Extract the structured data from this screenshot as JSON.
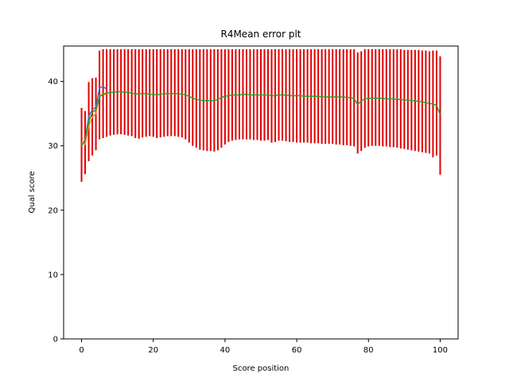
{
  "chart_data": {
    "type": "line",
    "title": "R4Mean error plt",
    "xlabel": "Score position",
    "ylabel": "Qual score",
    "xlim": [
      -5,
      105
    ],
    "ylim": [
      0,
      45.5
    ],
    "xticks": [
      0,
      20,
      40,
      60,
      80,
      100
    ],
    "yticks": [
      0,
      10,
      20,
      30,
      40
    ],
    "grid": false,
    "colors": {
      "errorbar": "#e00000",
      "series_blue": "#4a6fd8",
      "series_orange": "#ff8c1a",
      "series_green": "#2ca02c"
    },
    "errorbars": [
      {
        "x": 0,
        "low": 24.4,
        "high": 35.9
      },
      {
        "x": 1,
        "low": 25.6,
        "high": 35.4
      },
      {
        "x": 2,
        "low": 27.6,
        "high": 39.9
      },
      {
        "x": 3,
        "low": 28.5,
        "high": 40.5
      },
      {
        "x": 4,
        "low": 29.3,
        "high": 40.6
      },
      {
        "x": 5,
        "low": 31.0,
        "high": 44.8
      },
      {
        "x": 6,
        "low": 31.2,
        "high": 45.0
      },
      {
        "x": 7,
        "low": 31.4,
        "high": 45.0
      },
      {
        "x": 8,
        "low": 31.6,
        "high": 45.0
      },
      {
        "x": 9,
        "low": 31.7,
        "high": 45.0
      },
      {
        "x": 10,
        "low": 31.8,
        "high": 45.0
      },
      {
        "x": 11,
        "low": 31.8,
        "high": 45.0
      },
      {
        "x": 12,
        "low": 31.7,
        "high": 45.0
      },
      {
        "x": 13,
        "low": 31.6,
        "high": 45.0
      },
      {
        "x": 14,
        "low": 31.5,
        "high": 45.0
      },
      {
        "x": 15,
        "low": 31.2,
        "high": 45.0
      },
      {
        "x": 16,
        "low": 31.1,
        "high": 45.0
      },
      {
        "x": 17,
        "low": 31.3,
        "high": 45.0
      },
      {
        "x": 18,
        "low": 31.4,
        "high": 45.0
      },
      {
        "x": 19,
        "low": 31.5,
        "high": 45.0
      },
      {
        "x": 20,
        "low": 31.4,
        "high": 45.0
      },
      {
        "x": 21,
        "low": 31.2,
        "high": 45.0
      },
      {
        "x": 22,
        "low": 31.3,
        "high": 45.0
      },
      {
        "x": 23,
        "low": 31.4,
        "high": 45.0
      },
      {
        "x": 24,
        "low": 31.5,
        "high": 45.0
      },
      {
        "x": 25,
        "low": 31.5,
        "high": 45.0
      },
      {
        "x": 26,
        "low": 31.5,
        "high": 45.0
      },
      {
        "x": 27,
        "low": 31.4,
        "high": 45.0
      },
      {
        "x": 28,
        "low": 31.3,
        "high": 45.0
      },
      {
        "x": 29,
        "low": 31.0,
        "high": 45.0
      },
      {
        "x": 30,
        "low": 30.5,
        "high": 45.0
      },
      {
        "x": 31,
        "low": 30.0,
        "high": 45.0
      },
      {
        "x": 32,
        "low": 29.7,
        "high": 45.0
      },
      {
        "x": 33,
        "low": 29.4,
        "high": 45.0
      },
      {
        "x": 34,
        "low": 29.3,
        "high": 45.0
      },
      {
        "x": 35,
        "low": 29.2,
        "high": 45.0
      },
      {
        "x": 36,
        "low": 29.2,
        "high": 45.0
      },
      {
        "x": 37,
        "low": 29.1,
        "high": 45.0
      },
      {
        "x": 38,
        "low": 29.3,
        "high": 45.0
      },
      {
        "x": 39,
        "low": 29.7,
        "high": 45.0
      },
      {
        "x": 40,
        "low": 30.2,
        "high": 45.0
      },
      {
        "x": 41,
        "low": 30.6,
        "high": 45.0
      },
      {
        "x": 42,
        "low": 30.8,
        "high": 45.0
      },
      {
        "x": 43,
        "low": 30.9,
        "high": 45.0
      },
      {
        "x": 44,
        "low": 31.0,
        "high": 45.0
      },
      {
        "x": 45,
        "low": 31.0,
        "high": 45.0
      },
      {
        "x": 46,
        "low": 31.0,
        "high": 45.0
      },
      {
        "x": 47,
        "low": 31.0,
        "high": 45.0
      },
      {
        "x": 48,
        "low": 30.9,
        "high": 45.0
      },
      {
        "x": 49,
        "low": 30.9,
        "high": 45.0
      },
      {
        "x": 50,
        "low": 30.8,
        "high": 45.0
      },
      {
        "x": 51,
        "low": 30.8,
        "high": 45.0
      },
      {
        "x": 52,
        "low": 30.9,
        "high": 45.0
      },
      {
        "x": 53,
        "low": 30.5,
        "high": 45.0
      },
      {
        "x": 54,
        "low": 30.6,
        "high": 45.0
      },
      {
        "x": 55,
        "low": 30.8,
        "high": 45.0
      },
      {
        "x": 56,
        "low": 30.8,
        "high": 45.0
      },
      {
        "x": 57,
        "low": 30.7,
        "high": 45.0
      },
      {
        "x": 58,
        "low": 30.6,
        "high": 45.0
      },
      {
        "x": 59,
        "low": 30.6,
        "high": 45.0
      },
      {
        "x": 60,
        "low": 30.5,
        "high": 45.0
      },
      {
        "x": 61,
        "low": 30.5,
        "high": 45.0
      },
      {
        "x": 62,
        "low": 30.5,
        "high": 45.0
      },
      {
        "x": 63,
        "low": 30.5,
        "high": 45.0
      },
      {
        "x": 64,
        "low": 30.4,
        "high": 45.0
      },
      {
        "x": 65,
        "low": 30.4,
        "high": 45.0
      },
      {
        "x": 66,
        "low": 30.4,
        "high": 45.0
      },
      {
        "x": 67,
        "low": 30.3,
        "high": 45.0
      },
      {
        "x": 68,
        "low": 30.3,
        "high": 45.0
      },
      {
        "x": 69,
        "low": 30.3,
        "high": 45.0
      },
      {
        "x": 70,
        "low": 30.3,
        "high": 45.0
      },
      {
        "x": 71,
        "low": 30.2,
        "high": 45.0
      },
      {
        "x": 72,
        "low": 30.2,
        "high": 45.0
      },
      {
        "x": 73,
        "low": 30.1,
        "high": 45.0
      },
      {
        "x": 74,
        "low": 30.1,
        "high": 45.0
      },
      {
        "x": 75,
        "low": 30.0,
        "high": 45.0
      },
      {
        "x": 76,
        "low": 29.9,
        "high": 45.0
      },
      {
        "x": 77,
        "low": 28.8,
        "high": 44.5
      },
      {
        "x": 78,
        "low": 29.2,
        "high": 44.7
      },
      {
        "x": 79,
        "low": 29.7,
        "high": 45.0
      },
      {
        "x": 80,
        "low": 29.9,
        "high": 45.0
      },
      {
        "x": 81,
        "low": 30.0,
        "high": 45.0
      },
      {
        "x": 82,
        "low": 30.0,
        "high": 45.0
      },
      {
        "x": 83,
        "low": 30.0,
        "high": 45.0
      },
      {
        "x": 84,
        "low": 29.9,
        "high": 45.0
      },
      {
        "x": 85,
        "low": 29.9,
        "high": 45.0
      },
      {
        "x": 86,
        "low": 29.8,
        "high": 45.0
      },
      {
        "x": 87,
        "low": 29.8,
        "high": 45.0
      },
      {
        "x": 88,
        "low": 29.7,
        "high": 45.0
      },
      {
        "x": 89,
        "low": 29.6,
        "high": 45.0
      },
      {
        "x": 90,
        "low": 29.5,
        "high": 44.9
      },
      {
        "x": 91,
        "low": 29.4,
        "high": 44.9
      },
      {
        "x": 92,
        "low": 29.3,
        "high": 44.9
      },
      {
        "x": 93,
        "low": 29.2,
        "high": 44.9
      },
      {
        "x": 94,
        "low": 29.1,
        "high": 44.9
      },
      {
        "x": 95,
        "low": 29.0,
        "high": 44.8
      },
      {
        "x": 96,
        "low": 28.9,
        "high": 44.8
      },
      {
        "x": 97,
        "low": 28.8,
        "high": 44.7
      },
      {
        "x": 98,
        "low": 28.2,
        "high": 44.8
      },
      {
        "x": 99,
        "low": 28.5,
        "high": 44.8
      },
      {
        "x": 100,
        "low": 25.5,
        "high": 43.9
      }
    ],
    "series": [
      {
        "color_key": "series_blue",
        "x": [
          0,
          1,
          2,
          3,
          4,
          5,
          6,
          7
        ],
        "y": [
          30.2,
          30.8,
          34.6,
          35.6,
          36.0,
          39.0,
          39.2,
          38.8
        ]
      },
      {
        "color_key": "series_orange",
        "x": [
          0,
          1,
          2,
          3,
          4,
          5,
          6,
          7
        ],
        "y": [
          30.5,
          30.2,
          33.0,
          34.5,
          35.0,
          37.8,
          38.0,
          37.9
        ]
      },
      {
        "color_key": "series_green",
        "x": [
          0,
          1,
          2,
          3,
          4,
          5,
          6,
          7,
          8,
          9,
          10,
          11,
          12,
          13,
          14,
          15,
          16,
          17,
          18,
          19,
          20,
          21,
          22,
          23,
          24,
          25,
          26,
          27,
          28,
          29,
          30,
          31,
          32,
          33,
          34,
          35,
          36,
          37,
          38,
          39,
          40,
          41,
          42,
          43,
          44,
          45,
          46,
          47,
          48,
          49,
          50,
          51,
          52,
          53,
          54,
          55,
          56,
          57,
          58,
          59,
          60,
          61,
          62,
          63,
          64,
          65,
          66,
          67,
          68,
          69,
          70,
          71,
          72,
          73,
          74,
          75,
          76,
          77,
          78,
          79,
          80,
          81,
          82,
          83,
          84,
          85,
          86,
          87,
          88,
          89,
          90,
          91,
          92,
          93,
          94,
          95,
          96,
          97,
          98,
          99,
          100
        ],
        "y": [
          30.0,
          31.0,
          33.8,
          35.2,
          35.6,
          37.6,
          38.0,
          38.2,
          38.3,
          38.3,
          38.4,
          38.4,
          38.3,
          38.3,
          38.2,
          38.0,
          38.1,
          38.1,
          38.1,
          38.0,
          38.0,
          37.9,
          38.0,
          38.1,
          38.1,
          38.1,
          38.1,
          38.1,
          38.0,
          37.9,
          37.7,
          37.4,
          37.2,
          37.1,
          37.0,
          37.0,
          37.0,
          37.0,
          37.2,
          37.5,
          37.7,
          37.8,
          37.9,
          37.9,
          37.9,
          38.0,
          38.0,
          37.9,
          37.9,
          37.9,
          37.9,
          37.9,
          37.9,
          37.8,
          37.8,
          37.9,
          37.9,
          37.9,
          37.8,
          37.8,
          37.8,
          37.8,
          37.7,
          37.7,
          37.7,
          37.7,
          37.7,
          37.6,
          37.6,
          37.6,
          37.6,
          37.6,
          37.6,
          37.6,
          37.5,
          37.5,
          37.3,
          36.4,
          37.0,
          37.3,
          37.4,
          37.4,
          37.4,
          37.4,
          37.4,
          37.3,
          37.3,
          37.3,
          37.2,
          37.2,
          37.1,
          37.1,
          37.0,
          37.0,
          36.9,
          36.8,
          36.7,
          36.6,
          36.5,
          36.3,
          34.8
        ]
      }
    ]
  }
}
